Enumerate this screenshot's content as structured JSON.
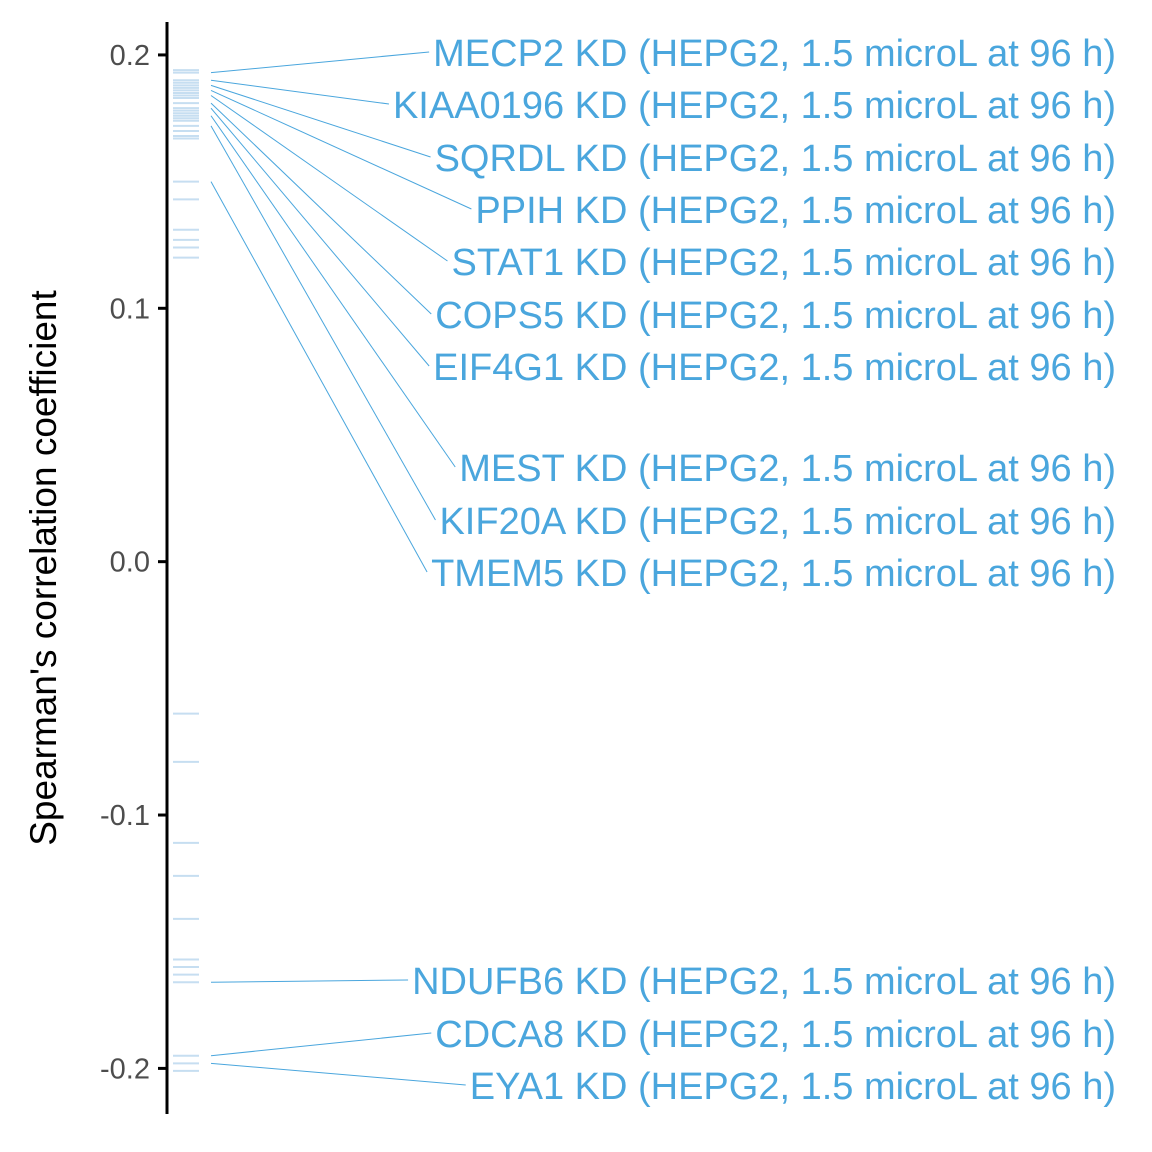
{
  "chart_data": {
    "type": "strip",
    "title": "",
    "xlabel": "",
    "ylabel": "Spearman's correlation coefficient",
    "ylim": [
      -0.218,
      0.213
    ],
    "yticks": [
      0.2,
      0.1,
      0.0,
      -0.1,
      -0.2
    ],
    "ytick_labels": [
      "0.2",
      "0.1",
      "0.0",
      "-0.1",
      "-0.2"
    ],
    "colors": {
      "label": "#4aa6dd",
      "mark": "#c6def1",
      "axis": "#000000",
      "tick_text": "#4d4d4d"
    },
    "marks": [
      0.194,
      0.193,
      0.19,
      0.189,
      0.188,
      0.187,
      0.186,
      0.185,
      0.184,
      0.183,
      0.181,
      0.179,
      0.178,
      0.177,
      0.176,
      0.175,
      0.174,
      0.172,
      0.17,
      0.168,
      0.167,
      0.15,
      0.143,
      0.131,
      0.127,
      0.124,
      0.12,
      -0.06,
      -0.079,
      -0.111,
      -0.124,
      -0.141,
      -0.157,
      -0.16,
      -0.163,
      -0.166,
      -0.195,
      -0.198,
      -0.201
    ],
    "labels": [
      {
        "text": "MECP2 KD (HEPG2, 1.5 microL at 96 h)",
        "value": 0.193
      },
      {
        "text": "KIAA0196 KD (HEPG2, 1.5 microL at 96 h)",
        "value": 0.19
      },
      {
        "text": "SQRDL KD (HEPG2, 1.5 microL at 96 h)",
        "value": 0.188
      },
      {
        "text": "PPIH KD (HEPG2, 1.5 microL at 96 h)",
        "value": 0.186
      },
      {
        "text": "STAT1 KD (HEPG2, 1.5 microL at 96 h)",
        "value": 0.184
      },
      {
        "text": "COPS5 KD (HEPG2, 1.5 microL at 96 h)",
        "value": 0.181
      },
      {
        "text": "EIF4G1 KD (HEPG2, 1.5 microL at 96 h)",
        "value": 0.179
      },
      {
        "text": "MEST KD (HEPG2, 1.5 microL at 96 h)",
        "value": 0.176
      },
      {
        "text": "KIF20A KD (HEPG2, 1.5 microL at 96 h)",
        "value": 0.172
      },
      {
        "text": "TMEM5 KD (HEPG2, 1.5 microL at 96 h)",
        "value": 0.15
      },
      {
        "text": "NDUFB6 KD (HEPG2, 1.5 microL at 96 h)",
        "value": -0.166
      },
      {
        "text": "CDCA8 KD (HEPG2, 1.5 microL at 96 h)",
        "value": -0.195
      },
      {
        "text": "EYA1 KD (HEPG2, 1.5 microL at 96 h)",
        "value": -0.198
      }
    ]
  }
}
